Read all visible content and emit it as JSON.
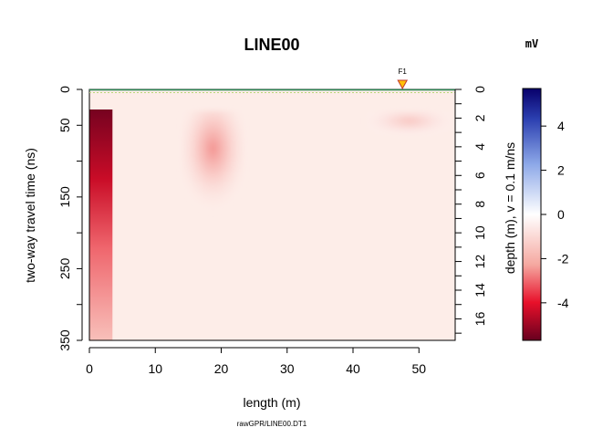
{
  "chart_data": {
    "type": "heatmap",
    "title": "LINE00",
    "xlabel": "length (m)",
    "ylabel": "two-way travel time (ns)",
    "ylabel_right": "depth (m),  v = 0.1 m/ns",
    "source_file": "rawGPR/LINE00.DT1",
    "colorbar_unit": "mV",
    "fiducial": {
      "label": "F1",
      "x": 47.5
    },
    "xlim": [
      0,
      55.5
    ],
    "ylim": [
      0,
      350
    ],
    "depth_lim": [
      0,
      17.5
    ],
    "x_ticks": [
      0,
      10,
      20,
      30,
      40,
      50
    ],
    "y_ticks": [
      0,
      50,
      100,
      150,
      200,
      250,
      300,
      350
    ],
    "y_tick_labels": [
      "0",
      "50",
      "",
      "150",
      "",
      "250",
      "",
      "350"
    ],
    "depth_ticks": [
      0,
      2,
      4,
      6,
      8,
      10,
      12,
      14,
      16
    ],
    "depth_ticks_unlabeled": [
      1,
      3,
      5,
      7,
      9,
      11,
      13,
      15,
      17
    ],
    "colorbar": {
      "range": [
        -5.7,
        5.7
      ],
      "ticks": [
        4,
        2,
        0,
        -2,
        -4
      ],
      "tick_labels": [
        "4",
        "2",
        "0",
        "-2",
        "-4"
      ],
      "low_color": "#67001F",
      "mid_color": "#FFFFFF",
      "high_color": "#08006B"
    },
    "anomalies": [
      {
        "x_range": [
          0,
          3.5
        ],
        "time_range": [
          28,
          350
        ],
        "amplitude": -5.5
      },
      {
        "x_range": [
          14,
          23.5
        ],
        "time_range": [
          30,
          180
        ],
        "amplitude": -2.5
      },
      {
        "x_range": [
          42,
          55
        ],
        "time_range": [
          30,
          70
        ],
        "amplitude": -1.5
      }
    ],
    "background_amplitude": -0.4,
    "surface_line_color": "#2E8B57"
  }
}
